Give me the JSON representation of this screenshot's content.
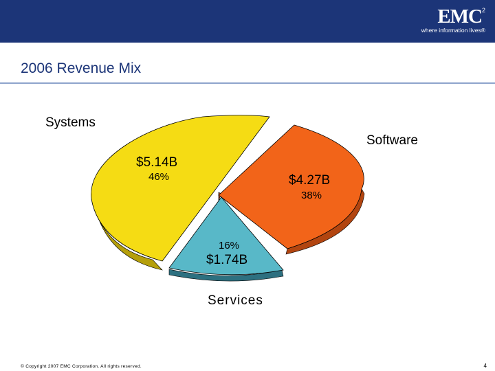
{
  "slide": {
    "title": "2006 Revenue Mix",
    "copyright": "© Copyright 2007 EMC Corporation. All rights reserved.",
    "page_number": "4"
  },
  "logo": {
    "mark": "EMC",
    "superscript": "2",
    "tagline": "where information lives®"
  },
  "colors": {
    "header": "#1c3578",
    "systems": "#f5dc14",
    "software": "#f26419",
    "services": "#58b8c8"
  },
  "chart_data": {
    "type": "pie",
    "title": "2006 Revenue Mix",
    "slices": [
      {
        "name": "Systems",
        "value": 5.14,
        "value_label": "$5.14B",
        "percent": 46,
        "percent_label": "46%"
      },
      {
        "name": "Software",
        "value": 4.27,
        "value_label": "$4.27B",
        "percent": 38,
        "percent_label": "38%"
      },
      {
        "name": "Services",
        "value": 1.74,
        "value_label": "$1.74B",
        "percent": 16,
        "percent_label": "16%"
      }
    ]
  }
}
